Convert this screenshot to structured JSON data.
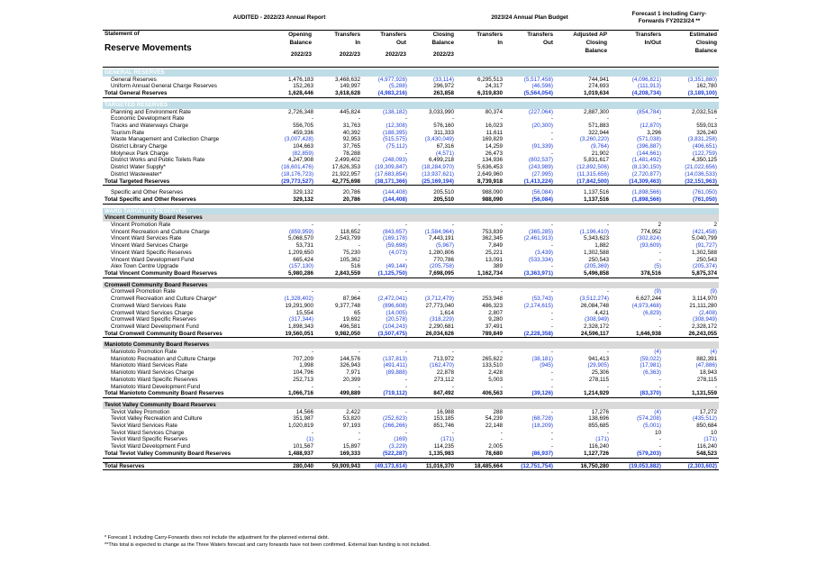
{
  "header": {
    "audited": "AUDITED - 2022/23 Annual Report",
    "plan": "2023/24 Annual Plan Budget",
    "forecast": "Forecast 1 including Carry-Forwards FY2023/24 **"
  },
  "columns": {
    "statement_of": "Statement of",
    "reserve_movements": "Reserve Movements",
    "opening": [
      "Opening",
      "Balance",
      "2022/23"
    ],
    "transfers_in": [
      "Transfers",
      "In",
      "2022/23"
    ],
    "transfers_out": [
      "Transfers",
      "Out",
      "2022/23"
    ],
    "closing": [
      "Closing",
      "Balance",
      "2022/23"
    ],
    "plan_in": [
      "Transfers",
      "In"
    ],
    "plan_out": [
      "Transfers",
      "Out"
    ],
    "adjusted_ap": [
      "Adjusted AP",
      "Closing",
      "Balance"
    ],
    "fc_transfers": [
      "Transfers",
      "In/Out"
    ],
    "fc_estimated": [
      "Estimated",
      "Closing",
      "Balance"
    ]
  },
  "rows": [
    {
      "t": "section",
      "label": "GENERAL RESERVES"
    },
    {
      "t": "row",
      "label": "General Reserves",
      "v": [
        "1,476,183",
        "3,468,632",
        "(4,977,928)",
        "(33,114)",
        "6,295,513",
        "(5,517,458)",
        "744,941",
        "(4,096,821)",
        "(3,351,880)"
      ]
    },
    {
      "t": "row",
      "label": "Uniform Annual General Charge Reserves",
      "v": [
        "152,263",
        "149,997",
        "(5,288)",
        "296,972",
        "24,317",
        "(46,596)",
        "274,693",
        "(111,913)",
        "162,780"
      ]
    },
    {
      "t": "tot",
      "label": "Total General Reserves",
      "v": [
        "1,628,446",
        "3,618,628",
        "(4,983,216)",
        "263,858",
        "6,319,830",
        "(5,564,054)",
        "1,019,634",
        "(4,208,734)",
        "(3,189,100)"
      ]
    },
    {
      "t": "gap"
    },
    {
      "t": "section",
      "label": "TARGETED RESERVES"
    },
    {
      "t": "row",
      "label": "Planning and Environment Rate",
      "v": [
        "2,726,348",
        "445,824",
        "(138,182)",
        "3,033,990",
        "80,374",
        "(227,064)",
        "2,887,300",
        "(854,784)",
        "2,032,516"
      ]
    },
    {
      "t": "row",
      "label": "Economic Development Rate",
      "v": [
        "-",
        "-",
        "-",
        "-",
        "-",
        "-",
        "-",
        "-",
        "-"
      ]
    },
    {
      "t": "row",
      "label": "Tracks and Waterways Charge",
      "v": [
        "556,705",
        "31,763",
        "(12,308)",
        "576,160",
        "16,023",
        "(20,300)",
        "571,883",
        "(12,870)",
        "559,013"
      ]
    },
    {
      "t": "row",
      "label": "Tourism Rate",
      "v": [
        "459,336",
        "40,392",
        "(188,395)",
        "311,333",
        "11,611",
        "-",
        "322,944",
        "3,296",
        "326,240"
      ]
    },
    {
      "t": "row",
      "label": "Waste Management and Collection Charge",
      "v": [
        "(3,007,428)",
        "92,953",
        "(515,575)",
        "(3,430,049)",
        "169,829",
        "-",
        "(3,260,220)",
        "(571,038)",
        "(3,831,258)"
      ]
    },
    {
      "t": "row",
      "label": "District Library Charge",
      "v": [
        "104,663",
        "37,765",
        "(75,112)",
        "67,316",
        "14,259",
        "(91,339)",
        "(9,764)",
        "(396,887)",
        "(406,651)"
      ]
    },
    {
      "t": "row",
      "label": "Molyneux Park Charge",
      "v": [
        "(82,859)",
        "78,288",
        "-",
        "(4,571)",
        "26,473",
        "-",
        "21,902",
        "(144,661)",
        "(122,759)"
      ]
    },
    {
      "t": "row",
      "label": "District Works and Public Toilets Rate",
      "v": [
        "4,247,908",
        "2,499,402",
        "(248,093)",
        "6,499,218",
        "134,936",
        "(802,537)",
        "5,831,617",
        "(1,481,492)",
        "4,350,125"
      ]
    },
    {
      "t": "row",
      "label": "District Water Supply*",
      "v": [
        "(16,601,476)",
        "17,626,353",
        "(19,309,847)",
        "(18,284,970)",
        "5,636,453",
        "(243,989)",
        "(12,892,506)",
        "(8,130,150)",
        "(21,022,656)"
      ]
    },
    {
      "t": "row",
      "label": "District Wastewater*",
      "v": [
        "(18,176,723)",
        "21,922,957",
        "(17,683,854)",
        "(13,937,621)",
        "2,649,960",
        "(27,995)",
        "(11,315,656)",
        "(2,720,877)",
        "(14,036,533)"
      ]
    },
    {
      "t": "tot",
      "label": "Total Targeted Reserves",
      "v": [
        "(29,773,527)",
        "42,775,698",
        "(38,171,366)",
        "(25,169,194)",
        "8,739,918",
        "(1,413,224)",
        "(17,842,500)",
        "(14,309,463)",
        "(32,151,963)"
      ]
    },
    {
      "t": "gap"
    },
    {
      "t": "row",
      "label": "Specific and Other Reserves",
      "v": [
        "329,132",
        "20,786",
        "(144,408)",
        "205,510",
        "988,090",
        "(56,084)",
        "1,137,516",
        "(1,898,566)",
        "(761,050)"
      ]
    },
    {
      "t": "tot",
      "label": "Total Specific and Other Reserves",
      "v": [
        "329,132",
        "20,786",
        "(144,408)",
        "205,510",
        "988,090",
        "(56,084)",
        "1,137,516",
        "(1,898,566)",
        "(761,050)"
      ]
    },
    {
      "t": "gap"
    },
    {
      "t": "section",
      "label": "WARD TARGETED RESERVES"
    },
    {
      "t": "sub",
      "label": "Vincent Community Board Reserves"
    },
    {
      "t": "row",
      "label": "Vincent Promotion Rate",
      "v": [
        "-",
        "-",
        "-",
        "-",
        "-",
        "-",
        "-",
        "2",
        "2"
      ]
    },
    {
      "t": "row",
      "label": "Vincent Recreation and Culture Charge",
      "v": [
        "(859,959)",
        "118,652",
        "(843,657)",
        "(1,584,964)",
        "753,839",
        "(365,285)",
        "(1,196,410)",
        "774,952",
        "(421,458)"
      ]
    },
    {
      "t": "row",
      "label": "Vincent Ward Services Rate",
      "v": [
        "5,068,570",
        "2,543,799",
        "(169,178)",
        "7,443,191",
        "362,345",
        "(2,461,913)",
        "5,343,623",
        "(302,824)",
        "5,040,799"
      ]
    },
    {
      "t": "row",
      "label": "Vincent Ward Services Charge",
      "v": [
        "53,731",
        "-",
        "(59,698)",
        "(5,967)",
        "7,849",
        "-",
        "1,882",
        "(93,609)",
        "(91,727)"
      ]
    },
    {
      "t": "row",
      "label": "Vincent Ward Specific Reserves",
      "v": [
        "1,209,650",
        "75,230",
        "(4,073)",
        "1,280,806",
        "25,221",
        "(3,439)",
        "1,302,588",
        "-",
        "1,302,588"
      ]
    },
    {
      "t": "row",
      "label": "Vincent Ward Development Fund",
      "v": [
        "665,424",
        "105,362",
        "-",
        "770,786",
        "13,091",
        "(533,334)",
        "250,543",
        "-",
        "250,543"
      ]
    },
    {
      "t": "row",
      "label": "Alex Town Centre Upgrade",
      "v": [
        "(157,130)",
        "516",
        "(49,144)",
        "(205,758)",
        "389",
        "-",
        "(205,369)",
        "(5)",
        "(205,374)"
      ]
    },
    {
      "t": "tot",
      "label": "Total Vincent Community Board Reserves",
      "v": [
        "5,980,286",
        "2,843,559",
        "(1,125,750)",
        "7,698,095",
        "1,162,734",
        "(3,363,971)",
        "5,496,858",
        "378,516",
        "5,875,374"
      ]
    },
    {
      "t": "gap"
    },
    {
      "t": "sub",
      "label": "Cromwell Community Board Reserves"
    },
    {
      "t": "row",
      "label": "Cromwell Promotion Rate",
      "v": [
        "-",
        "-",
        "-",
        "-",
        "-",
        "-",
        "-",
        "(9)",
        "(9)"
      ]
    },
    {
      "t": "row",
      "label": "Cromwell Recreation and Culture Charge*",
      "v": [
        "(1,328,402)",
        "87,964",
        "(2,472,041)",
        "(3,712,479)",
        "253,948",
        "(53,743)",
        "(3,512,274)",
        "6,627,244",
        "3,114,970"
      ]
    },
    {
      "t": "row",
      "label": "Cromwell Ward Services Rate",
      "v": [
        "19,291,900",
        "9,377,748",
        "(896,608)",
        "27,773,040",
        "486,323",
        "(2,174,615)",
        "26,084,748",
        "(4,973,468)",
        "21,111,280"
      ]
    },
    {
      "t": "row",
      "label": "Cromwell Ward Services Charge",
      "v": [
        "15,554",
        "65",
        "(14,005)",
        "1,614",
        "2,807",
        "-",
        "4,421",
        "(6,829)",
        "(2,408)"
      ]
    },
    {
      "t": "row",
      "label": "Cromwell Ward Specific Reserves",
      "v": [
        "(317,344)",
        "19,692",
        "(20,578)",
        "(318,229)",
        "9,280",
        "-",
        "(308,949)",
        "-",
        "(308,949)"
      ]
    },
    {
      "t": "row",
      "label": "Cromwell Ward Development Fund",
      "v": [
        "1,898,343",
        "496,581",
        "(104,243)",
        "2,290,681",
        "37,491",
        "-",
        "2,328,172",
        "-",
        "2,328,172"
      ]
    },
    {
      "t": "tot",
      "label": "Total Cromwell Community Board Reserves",
      "v": [
        "19,560,051",
        "9,982,050",
        "(3,507,475)",
        "26,034,626",
        "789,849",
        "(2,228,358)",
        "24,596,117",
        "1,646,938",
        "26,243,055"
      ]
    },
    {
      "t": "gap"
    },
    {
      "t": "sub",
      "label": "Maniototo Community Board Reserves"
    },
    {
      "t": "row",
      "label": "Maniototo Promotion Rate",
      "v": [
        "-",
        "-",
        "-",
        "-",
        "-",
        "-",
        "-",
        "(4)",
        "(4)"
      ]
    },
    {
      "t": "row",
      "label": "Maniototo Recreation and Culture Charge",
      "v": [
        "707,209",
        "144,576",
        "(137,813)",
        "713,972",
        "265,622",
        "(38,181)",
        "941,413",
        "(59,022)",
        "882,391"
      ]
    },
    {
      "t": "row",
      "label": "Maniototo Ward Services Rate",
      "v": [
        "1,998",
        "326,943",
        "(491,411)",
        "(162,470)",
        "133,510",
        "(945)",
        "(29,905)",
        "(17,981)",
        "(47,886)"
      ]
    },
    {
      "t": "row",
      "label": "Maniototo Ward Services Charge",
      "v": [
        "104,796",
        "7,971",
        "(89,888)",
        "22,878",
        "2,428",
        "-",
        "25,306",
        "(6,363)",
        "18,943"
      ]
    },
    {
      "t": "row",
      "label": "Maniototo Ward Specific Reserves",
      "v": [
        "252,713",
        "20,399",
        "-",
        "273,112",
        "5,003",
        "-",
        "278,115",
        "-",
        "278,115"
      ]
    },
    {
      "t": "row",
      "label": "Maniototo Ward Development Fund",
      "v": [
        "-",
        "-",
        "-",
        "-",
        "-",
        "-",
        "-",
        "-",
        "-"
      ]
    },
    {
      "t": "tot",
      "label": "Total Maniototo Community Board Reserves",
      "v": [
        "1,066,716",
        "499,889",
        "(719,112)",
        "847,492",
        "406,563",
        "(39,126)",
        "1,214,929",
        "(83,370)",
        "1,131,559"
      ]
    },
    {
      "t": "gap"
    },
    {
      "t": "sub",
      "label": "Teviot Valley Community Board Reserves"
    },
    {
      "t": "row",
      "label": "Teviot Valley Promotion",
      "v": [
        "14,566",
        "2,422",
        "-",
        "16,988",
        "288",
        "-",
        "17,276",
        "(4)",
        "17,272"
      ]
    },
    {
      "t": "row",
      "label": "Teviot Valley Recreation and Culture",
      "v": [
        "351,987",
        "53,820",
        "(252,623)",
        "153,185",
        "54,239",
        "(68,728)",
        "138,696",
        "(574,208)",
        "(435,512)"
      ]
    },
    {
      "t": "row",
      "label": "Teviot Ward Services Rate",
      "v": [
        "1,020,819",
        "97,193",
        "(266,266)",
        "851,746",
        "22,148",
        "(18,209)",
        "855,685",
        "(5,001)",
        "850,684"
      ]
    },
    {
      "t": "row",
      "label": "Teviot Ward Services Charge",
      "v": [
        "-",
        "-",
        "-",
        "-",
        "-",
        "-",
        "-",
        "10",
        "10"
      ]
    },
    {
      "t": "row",
      "label": "Teviot Ward Specific Reserves",
      "v": [
        "(1)",
        "-",
        "(169)",
        "(171)",
        "-",
        "-",
        "(171)",
        "-",
        "(171)"
      ]
    },
    {
      "t": "row",
      "label": "Teviot Ward Development Fund",
      "v": [
        "101,567",
        "15,897",
        "(3,229)",
        "114,235",
        "2,005",
        "-",
        "116,240",
        "-",
        "116,240"
      ]
    },
    {
      "t": "tot",
      "label": "Total Teviot Valley Community Board Reserves",
      "v": [
        "1,488,937",
        "169,333",
        "(522,287)",
        "1,135,983",
        "78,680",
        "(86,937)",
        "1,127,726",
        "(579,203)",
        "548,523"
      ]
    },
    {
      "t": "gap"
    },
    {
      "t": "grand",
      "label": "Total Reserves",
      "v": [
        "280,040",
        "59,909,943",
        "(49,173,614)",
        "11,016,370",
        "18,485,664",
        "(12,751,754)",
        "16,750,280",
        "(19,053,882)",
        "(2,303,602)"
      ]
    }
  ],
  "footnotes": [
    "* Forecast 1 including Carry-Forwards does not include the adjustment for the planned external debt.",
    "**This total is expected to change as the Three Waters forecast and carry forwards have not been confirmed. External loan funding is not included."
  ],
  "colors": {
    "negative": "#1f3fd6",
    "section_band": "#bfdde6",
    "subheader_band": "#d9d9d9"
  }
}
